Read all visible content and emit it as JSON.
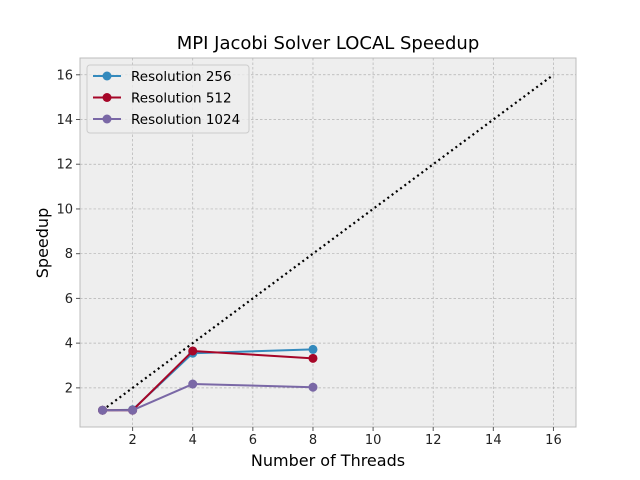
{
  "chart_data": {
    "type": "line",
    "title": "MPI Jacobi Solver LOCAL Speedup",
    "xlabel": "Number of Threads",
    "ylabel": "Speedup",
    "xlim": [
      0.25,
      16.75
    ],
    "ylim": [
      0.25,
      16.75
    ],
    "xticks": [
      2,
      4,
      6,
      8,
      10,
      12,
      14,
      16
    ],
    "yticks": [
      2,
      4,
      6,
      8,
      10,
      12,
      14,
      16
    ],
    "grid": true,
    "legend_position": "top-left",
    "series": [
      {
        "name": "Resolution 256",
        "color": "#348ABD",
        "x": [
          1,
          2,
          4,
          8
        ],
        "y": [
          1.0,
          1.02,
          3.55,
          3.72
        ]
      },
      {
        "name": "Resolution 512",
        "color": "#A60628",
        "x": [
          1,
          2,
          4,
          8
        ],
        "y": [
          1.0,
          1.0,
          3.65,
          3.32
        ]
      },
      {
        "name": "Resolution 1024",
        "color": "#7A68A6",
        "x": [
          1,
          2,
          4,
          8
        ],
        "y": [
          1.0,
          1.0,
          2.17,
          2.03
        ]
      }
    ],
    "reference_line": {
      "style": "dotted",
      "color": "#000000",
      "x": [
        1,
        16
      ],
      "y": [
        1,
        16
      ]
    }
  }
}
